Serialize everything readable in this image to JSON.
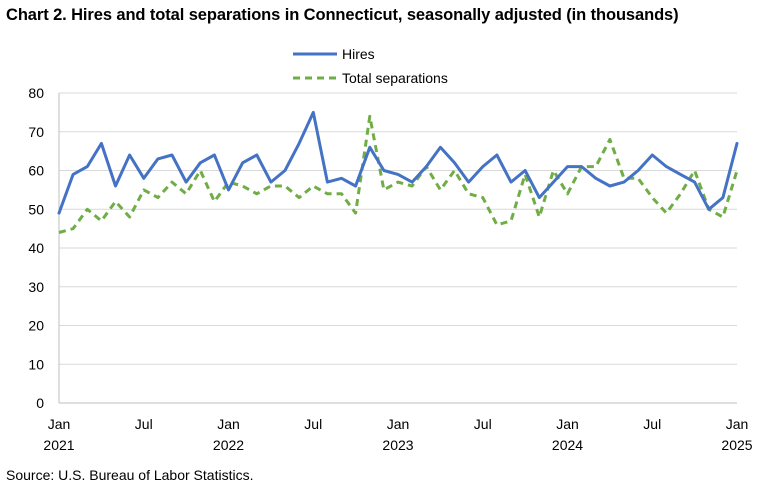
{
  "title": "Chart 2. Hires and total separations in Connecticut, seasonally adjusted (in thousands)",
  "source": "Source: U.S. Bureau of Labor Statistics.",
  "chart_data": {
    "type": "line",
    "title": "Chart 2. Hires and total separations in Connecticut, seasonally adjusted (in thousands)",
    "xlabel": "",
    "ylabel": "",
    "ylim": [
      0,
      80
    ],
    "yticks": [
      0,
      10,
      20,
      30,
      40,
      50,
      60,
      70,
      80
    ],
    "grid": "horizontal",
    "legend": "top-center",
    "x_tick_labels": [
      {
        "index": 0,
        "month": "Jan",
        "year": "2021"
      },
      {
        "index": 6,
        "month": "Jul",
        "year": ""
      },
      {
        "index": 12,
        "month": "Jan",
        "year": "2022"
      },
      {
        "index": 18,
        "month": "Jul",
        "year": ""
      },
      {
        "index": 24,
        "month": "Jan",
        "year": "2023"
      },
      {
        "index": 30,
        "month": "Jul",
        "year": ""
      },
      {
        "index": 36,
        "month": "Jan",
        "year": "2024"
      },
      {
        "index": 42,
        "month": "Jul",
        "year": ""
      },
      {
        "index": 48,
        "month": "Jan",
        "year": "2025"
      }
    ],
    "x": [
      "Jan 2021",
      "Feb 2021",
      "Mar 2021",
      "Apr 2021",
      "May 2021",
      "Jun 2021",
      "Jul 2021",
      "Aug 2021",
      "Sep 2021",
      "Oct 2021",
      "Nov 2021",
      "Dec 2021",
      "Jan 2022",
      "Feb 2022",
      "Mar 2022",
      "Apr 2022",
      "May 2022",
      "Jun 2022",
      "Jul 2022",
      "Aug 2022",
      "Sep 2022",
      "Oct 2022",
      "Nov 2022",
      "Dec 2022",
      "Jan 2023",
      "Feb 2023",
      "Mar 2023",
      "Apr 2023",
      "May 2023",
      "Jun 2023",
      "Jul 2023",
      "Aug 2023",
      "Sep 2023",
      "Oct 2023",
      "Nov 2023",
      "Dec 2023",
      "Jan 2024",
      "Feb 2024",
      "Mar 2024",
      "Apr 2024",
      "May 2024",
      "Jun 2024",
      "Jul 2024",
      "Aug 2024",
      "Sep 2024",
      "Oct 2024",
      "Nov 2024",
      "Dec 2024",
      "Jan 2025"
    ],
    "series": [
      {
        "name": "Hires",
        "color": "#4472C4",
        "style": "solid",
        "values": [
          49,
          59,
          61,
          67,
          56,
          64,
          58,
          63,
          64,
          57,
          62,
          64,
          55,
          62,
          64,
          57,
          60,
          67,
          75,
          57,
          58,
          56,
          66,
          60,
          59,
          57,
          61,
          66,
          62,
          57,
          61,
          64,
          57,
          60,
          53,
          57,
          61,
          61,
          58,
          56,
          57,
          60,
          64,
          61,
          59,
          57,
          50,
          53,
          67
        ]
      },
      {
        "name": "Total separations",
        "color": "#70AD47",
        "style": "dashed",
        "values": [
          44,
          45,
          50,
          47,
          52,
          48,
          55,
          53,
          57,
          54,
          60,
          52,
          57,
          56,
          54,
          56,
          56,
          53,
          56,
          54,
          54,
          49,
          74,
          55,
          57,
          56,
          61,
          55,
          60,
          54,
          53,
          46,
          47,
          59,
          48,
          60,
          54,
          61,
          61,
          68,
          58,
          58,
          53,
          49,
          54,
          60,
          50,
          48,
          60
        ]
      }
    ]
  }
}
